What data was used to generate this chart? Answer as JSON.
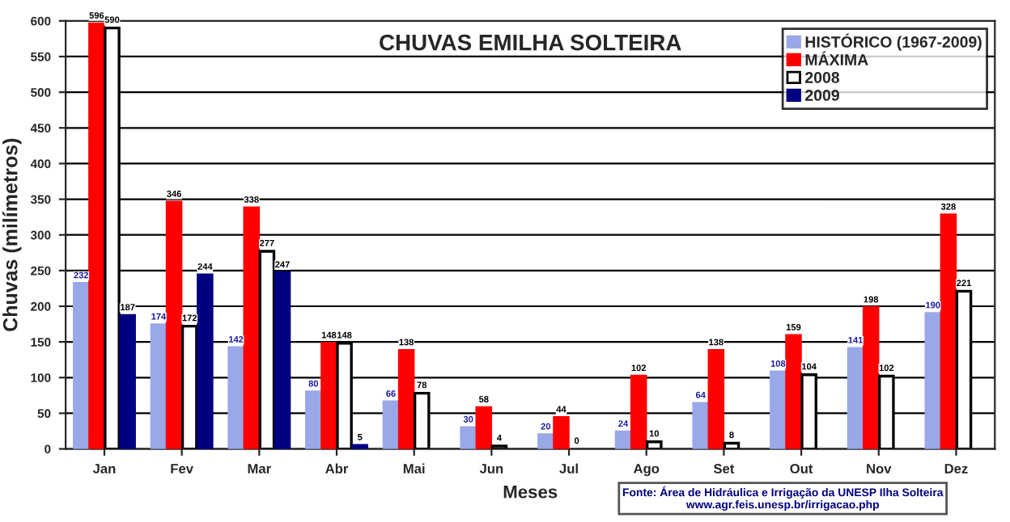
{
  "chart_data": {
    "type": "bar",
    "title": "CHUVAS EMILHA SOLTEIRA",
    "xlabel": "Meses",
    "ylabel": "Chuvas (milímetros)",
    "categories": [
      "Jan",
      "Fev",
      "Mar",
      "Abr",
      "Mai",
      "Jun",
      "Jul",
      "Ago",
      "Set",
      "Out",
      "Nov",
      "Dez"
    ],
    "series": [
      {
        "name": "HISTÓRICO (1967-2009)",
        "color": "#9aa8e8",
        "values": [
          232,
          174,
          142,
          80,
          66,
          30,
          20,
          24,
          64,
          108,
          141,
          190
        ]
      },
      {
        "name": "MÁXIMA",
        "color": "#ff0000",
        "values": [
          596,
          346,
          338,
          148,
          138,
          58,
          44,
          102,
          138,
          159,
          198,
          328
        ]
      },
      {
        "name": "2008",
        "color": "#ffffff",
        "values": [
          590,
          172,
          277,
          148,
          78,
          4,
          0,
          10,
          8,
          104,
          102,
          221
        ]
      },
      {
        "name": "2009",
        "color": "#000080",
        "values": [
          187,
          244,
          247,
          5,
          null,
          null,
          null,
          null,
          null,
          null,
          null,
          null
        ]
      }
    ],
    "ylim": [
      0,
      600
    ],
    "yticks": [
      0,
      50,
      100,
      150,
      200,
      250,
      300,
      350,
      400,
      450,
      500,
      550,
      600
    ],
    "grid": "y",
    "legend": "top right",
    "data_labels": true,
    "annotations": [
      "Fonte: Área de Hidráulica e Irrigação da UNESP Ilha Solteira",
      "www.agr.feis.unesp.br/irrigacao.php"
    ]
  }
}
